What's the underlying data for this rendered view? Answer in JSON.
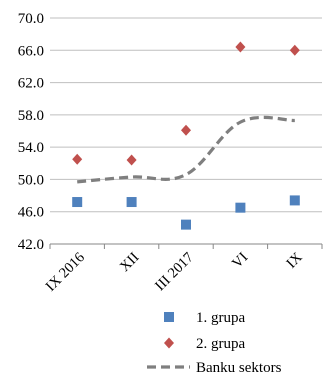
{
  "chart_data": {
    "type": "line",
    "categories": [
      "IX 2016",
      "XII",
      "III 2017",
      "VI",
      "IX"
    ],
    "yticks": [
      "42.0",
      "46.0",
      "50.0",
      "54.0",
      "58.0",
      "62.0",
      "66.0",
      "70.0"
    ],
    "ylim": [
      42,
      70
    ],
    "grid": true,
    "legend_position": "bottom",
    "series": [
      {
        "name": "1. grupa",
        "style": "scatter",
        "marker": "square",
        "color": "#4f81bd",
        "values": [
          47.2,
          47.2,
          44.4,
          46.5,
          47.4
        ]
      },
      {
        "name": "2. grupa",
        "style": "scatter",
        "marker": "diamond",
        "color": "#c0504d",
        "values": [
          52.5,
          52.4,
          56.1,
          66.4,
          66.0
        ]
      },
      {
        "name": "Banku sektors",
        "style": "dashed-line",
        "color": "#7f7f7f",
        "values": [
          49.7,
          50.3,
          50.6,
          57.1,
          57.3
        ]
      }
    ]
  }
}
